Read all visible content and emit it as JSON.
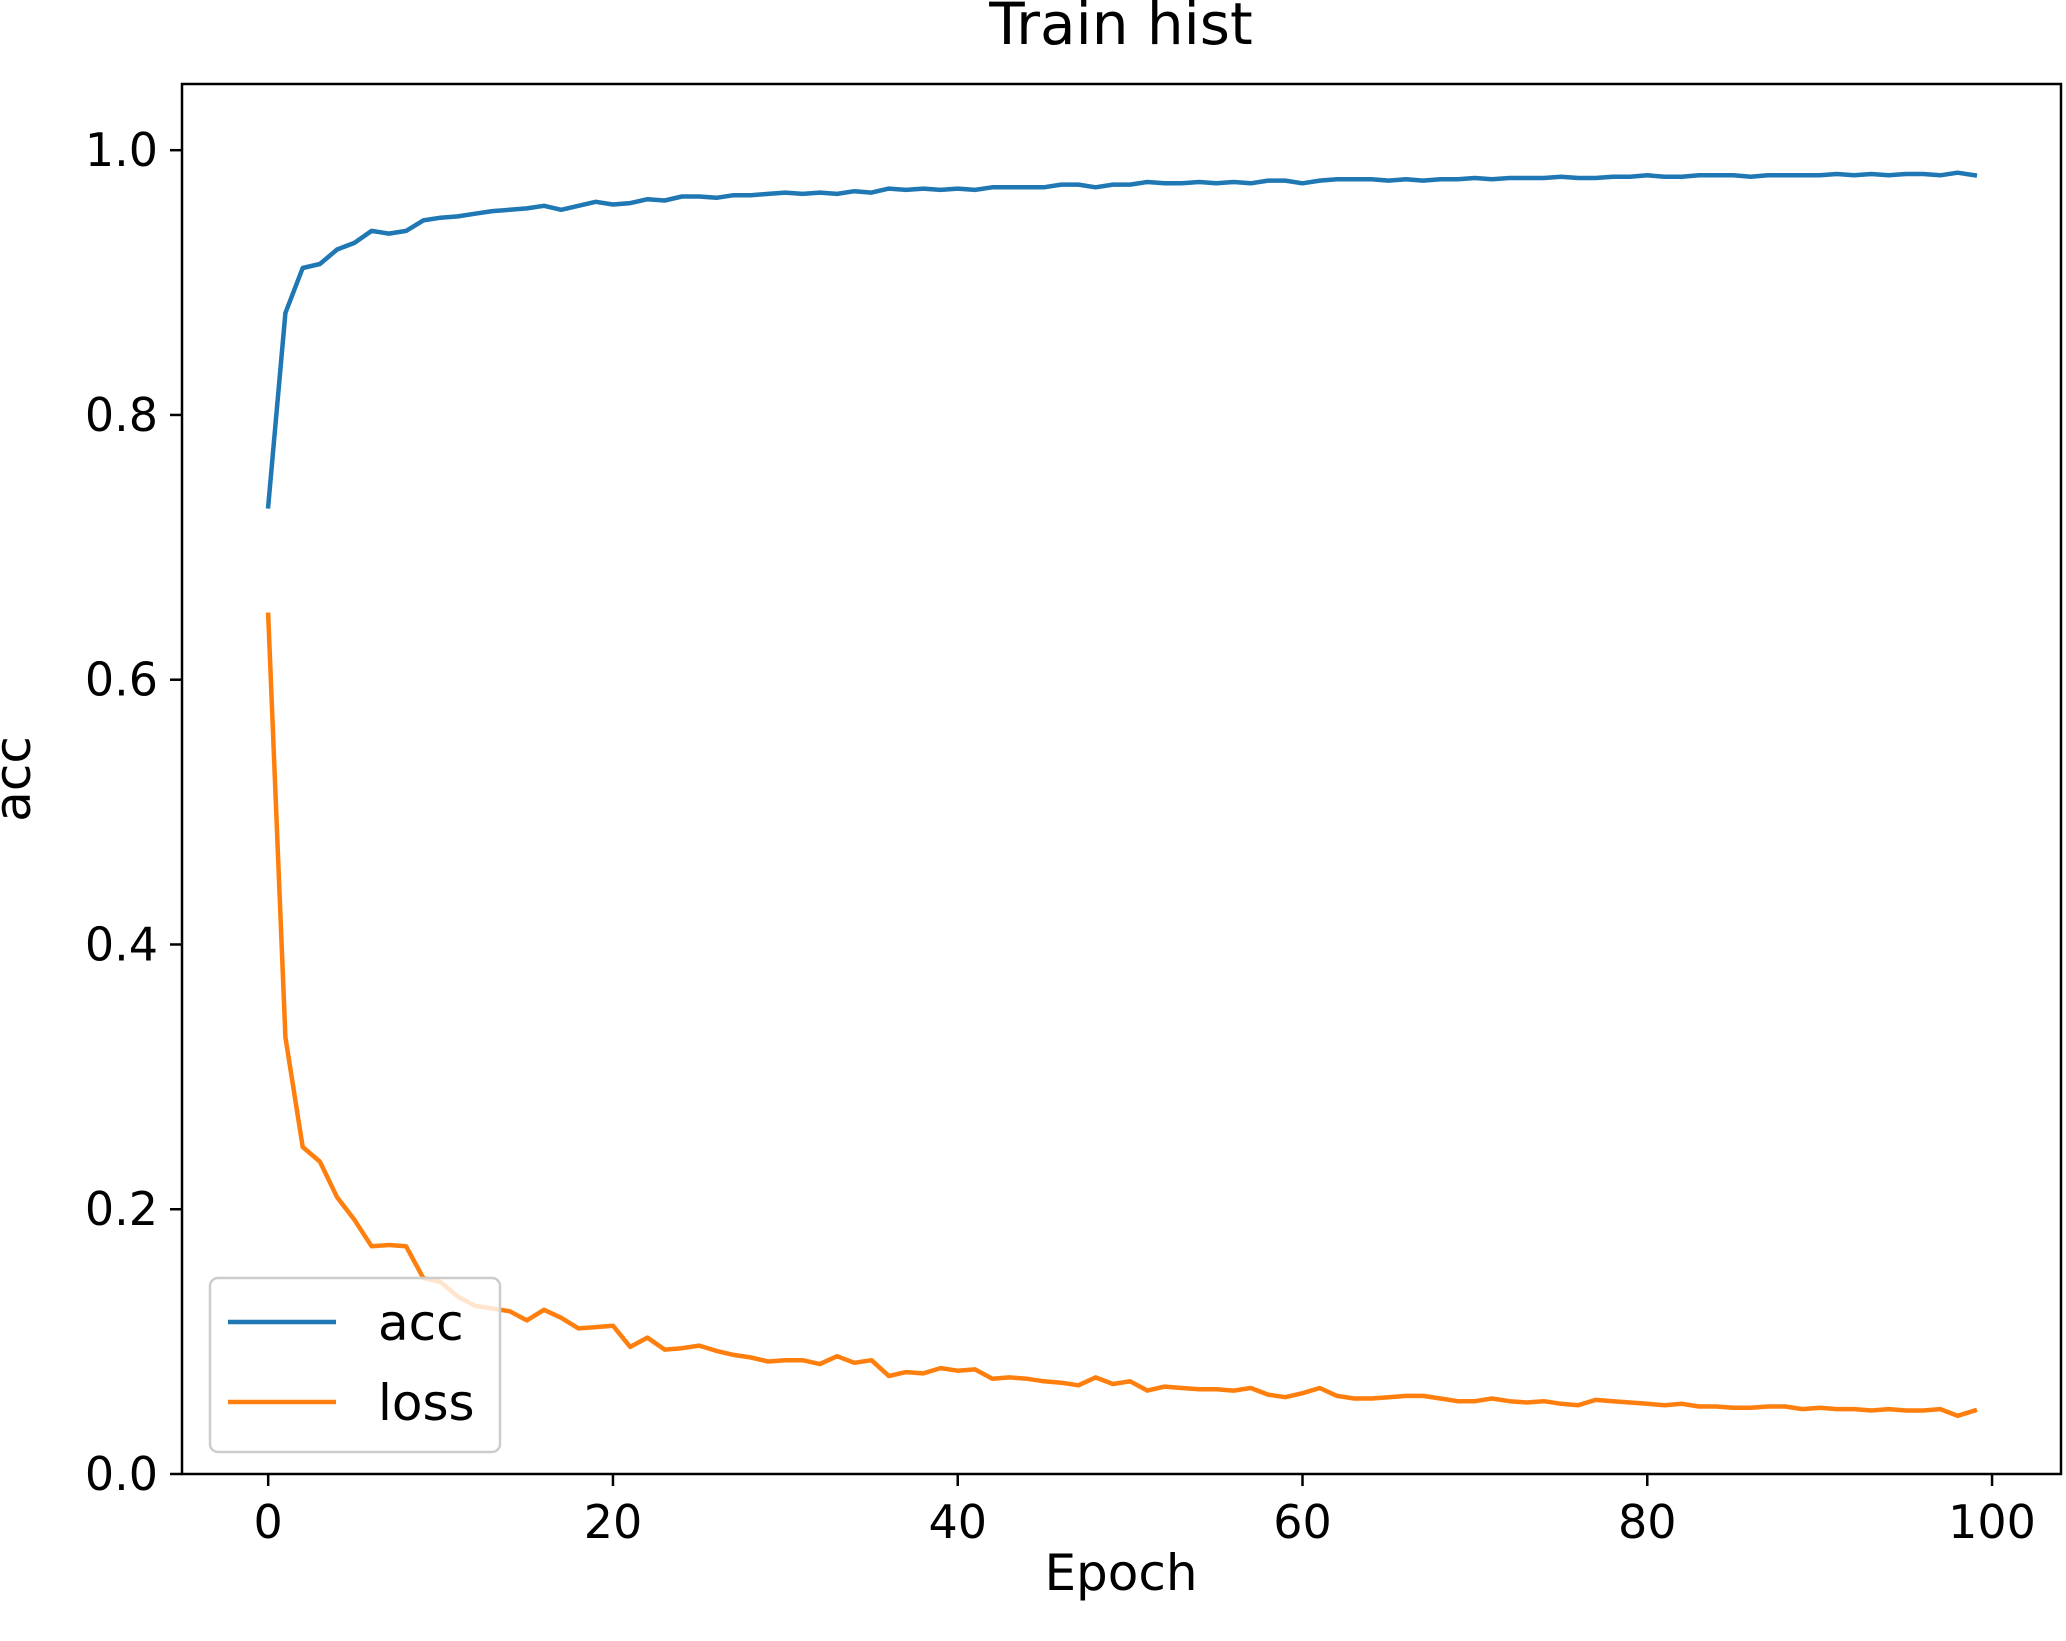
{
  "chart_data": {
    "type": "line",
    "title": "Train hist",
    "xlabel": "Epoch",
    "ylabel": "acc",
    "xlim": [
      -5,
      104
    ],
    "ylim": [
      0.0,
      1.05
    ],
    "xticks": [
      0,
      20,
      40,
      60,
      80,
      100
    ],
    "xtick_labels": [
      "0",
      "20",
      "40",
      "60",
      "80",
      "100"
    ],
    "yticks": [
      0.0,
      0.2,
      0.4,
      0.6,
      0.8,
      1.0
    ],
    "ytick_labels": [
      "0.0",
      "0.2",
      "0.4",
      "0.6",
      "0.8",
      "1.0"
    ],
    "grid": false,
    "legend_position": "lower-left",
    "x": [
      0,
      1,
      2,
      3,
      4,
      5,
      6,
      7,
      8,
      9,
      10,
      11,
      12,
      13,
      14,
      15,
      16,
      17,
      18,
      19,
      20,
      21,
      22,
      23,
      24,
      25,
      26,
      27,
      28,
      29,
      30,
      31,
      32,
      33,
      34,
      35,
      36,
      37,
      38,
      39,
      40,
      41,
      42,
      43,
      44,
      45,
      46,
      47,
      48,
      49,
      50,
      51,
      52,
      53,
      54,
      55,
      56,
      57,
      58,
      59,
      60,
      61,
      62,
      63,
      64,
      65,
      66,
      67,
      68,
      69,
      70,
      71,
      72,
      73,
      74,
      75,
      76,
      77,
      78,
      79,
      80,
      81,
      82,
      83,
      84,
      85,
      86,
      87,
      88,
      89,
      90,
      91,
      92,
      93,
      94,
      95,
      96,
      97,
      98,
      99
    ],
    "series": [
      {
        "name": "acc",
        "color": "#1f77b4",
        "values": [
          0.731,
          0.877,
          0.911,
          0.914,
          0.925,
          0.93,
          0.939,
          0.937,
          0.939,
          0.947,
          0.949,
          0.95,
          0.952,
          0.954,
          0.955,
          0.956,
          0.958,
          0.955,
          0.958,
          0.961,
          0.959,
          0.96,
          0.963,
          0.962,
          0.965,
          0.965,
          0.964,
          0.966,
          0.966,
          0.967,
          0.968,
          0.967,
          0.968,
          0.967,
          0.969,
          0.968,
          0.971,
          0.97,
          0.971,
          0.97,
          0.971,
          0.97,
          0.972,
          0.972,
          0.972,
          0.972,
          0.974,
          0.974,
          0.972,
          0.974,
          0.974,
          0.976,
          0.975,
          0.975,
          0.976,
          0.975,
          0.976,
          0.975,
          0.977,
          0.977,
          0.975,
          0.977,
          0.978,
          0.978,
          0.978,
          0.977,
          0.978,
          0.977,
          0.978,
          0.978,
          0.979,
          0.978,
          0.979,
          0.979,
          0.979,
          0.98,
          0.979,
          0.979,
          0.98,
          0.98,
          0.981,
          0.98,
          0.98,
          0.981,
          0.981,
          0.981,
          0.98,
          0.981,
          0.981,
          0.981,
          0.981,
          0.982,
          0.981,
          0.982,
          0.981,
          0.982,
          0.982,
          0.981,
          0.983,
          0.981
        ]
      },
      {
        "name": "loss",
        "color": "#ff7f0e",
        "values": [
          0.649,
          0.33,
          0.247,
          0.236,
          0.209,
          0.192,
          0.172,
          0.173,
          0.172,
          0.148,
          0.145,
          0.134,
          0.127,
          0.125,
          0.123,
          0.116,
          0.124,
          0.118,
          0.11,
          0.111,
          0.112,
          0.096,
          0.103,
          0.094,
          0.095,
          0.097,
          0.093,
          0.09,
          0.088,
          0.085,
          0.086,
          0.086,
          0.083,
          0.089,
          0.084,
          0.086,
          0.074,
          0.077,
          0.076,
          0.08,
          0.078,
          0.079,
          0.072,
          0.073,
          0.072,
          0.07,
          0.069,
          0.067,
          0.073,
          0.068,
          0.07,
          0.063,
          0.066,
          0.065,
          0.064,
          0.064,
          0.063,
          0.065,
          0.06,
          0.058,
          0.061,
          0.065,
          0.059,
          0.057,
          0.057,
          0.058,
          0.059,
          0.059,
          0.057,
          0.055,
          0.055,
          0.057,
          0.055,
          0.054,
          0.055,
          0.053,
          0.052,
          0.056,
          0.055,
          0.054,
          0.053,
          0.052,
          0.053,
          0.051,
          0.051,
          0.05,
          0.05,
          0.051,
          0.051,
          0.049,
          0.05,
          0.049,
          0.049,
          0.048,
          0.049,
          0.048,
          0.048,
          0.049,
          0.044,
          0.048
        ]
      }
    ]
  }
}
